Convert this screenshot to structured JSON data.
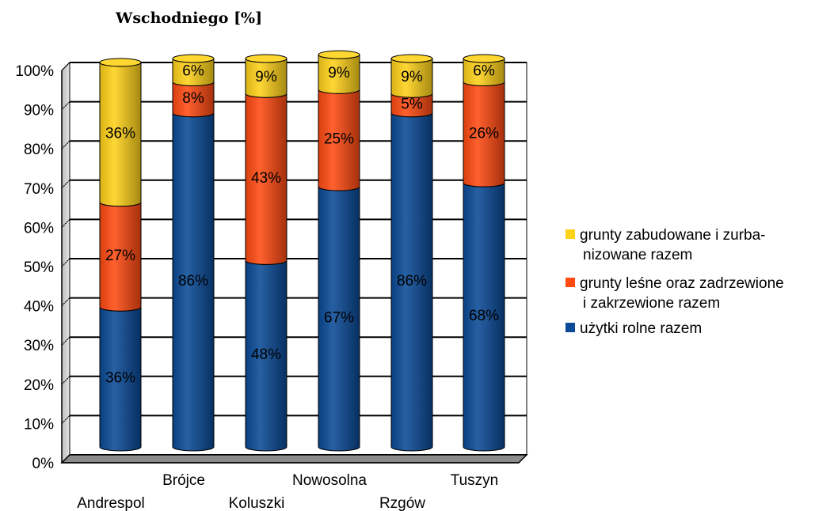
{
  "chart_data": {
    "type": "bar",
    "stacked": true,
    "percent_stacked": true,
    "title": "Wschodniego [%]",
    "xlabel": "",
    "ylabel": "",
    "ylim": [
      0,
      100
    ],
    "y_ticks": [
      "0%",
      "10%",
      "20%",
      "30%",
      "40%",
      "50%",
      "60%",
      "70%",
      "80%",
      "90%",
      "100%"
    ],
    "grid": true,
    "legend_position": "right",
    "categories": [
      "Andrespol",
      "Brójce",
      "Koluszki",
      "Nowosolna",
      "Rzgów",
      "Tuszyn"
    ],
    "series": [
      {
        "name": "użytki rolne razem",
        "color": "#0a4a96",
        "values": [
          36,
          86,
          48,
          67,
          86,
          68
        ],
        "labels": [
          "36%",
          "86%",
          "48%",
          "67%",
          "86%",
          "68%"
        ]
      },
      {
        "name": "grunty leśne oraz zadrzewione i zakrzewione razem",
        "legend_lines": [
          "grunty leśne oraz zadrzewione",
          "i zakrzewione razem"
        ],
        "color": "#ff4a12",
        "values": [
          27,
          8,
          43,
          25,
          5,
          26
        ],
        "labels": [
          "27%",
          "8%",
          "43%",
          "25%",
          "5%",
          "26%"
        ]
      },
      {
        "name": "grunty zabudowane i zurbanizowane razem",
        "legend_lines": [
          "grunty zabudowane i zurba-",
          "nizowane razem"
        ],
        "color": "#ffd21a",
        "values": [
          36,
          6,
          9,
          9,
          9,
          6
        ],
        "labels": [
          "36%",
          "6%",
          "9%",
          "9%",
          "9%",
          "6%"
        ]
      }
    ]
  }
}
